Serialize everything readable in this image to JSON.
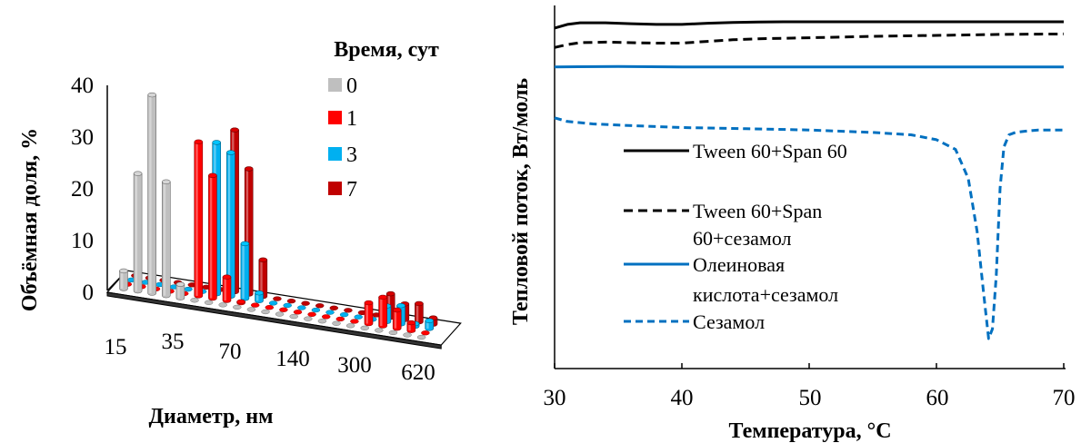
{
  "chart_data": [
    {
      "type": "bar",
      "subtype": "3d-column",
      "xlabel": "Диаметр, нм",
      "ylabel": "Объёмная доля, %",
      "ylim": [
        0,
        40
      ],
      "yticks": [
        "0",
        "10",
        "20",
        "30",
        "40"
      ],
      "xtick_labels": [
        "15",
        "35",
        "70",
        "140",
        "300",
        "620"
      ],
      "legend_title": "Время, сут",
      "legend_position": "top-right",
      "grid": false,
      "series": [
        {
          "name": "0",
          "color": "#bfbfbf",
          "values": [
            3.4,
            22.5,
            38.0,
            21.8,
            2.6,
            0,
            0,
            0,
            0,
            0,
            0,
            0,
            0,
            0,
            0,
            0,
            0,
            0,
            0,
            0,
            0,
            0
          ]
        },
        {
          "name": "1",
          "color": "#ff0000",
          "values": [
            0,
            0,
            0,
            0,
            0,
            29.5,
            23.5,
            4.5,
            0.2,
            0,
            0,
            0,
            0,
            0,
            0,
            0,
            0,
            4.0,
            5.5,
            3.5,
            1.5,
            0
          ]
        },
        {
          "name": "3",
          "color": "#00b0f0",
          "values": [
            0,
            0,
            0,
            0,
            0,
            0,
            29.0,
            27.5,
            10.5,
            1.5,
            0,
            0,
            0,
            0,
            0,
            0,
            0,
            0,
            3.0,
            3.5,
            0.5,
            1.5
          ]
        },
        {
          "name": "7",
          "color": "#c00000",
          "values": [
            0,
            0,
            0,
            0,
            0,
            0,
            0,
            31.0,
            24.0,
            7.0,
            0,
            0,
            0,
            0,
            0,
            0,
            0,
            0,
            4.5,
            3.0,
            3.5,
            1.2
          ]
        }
      ]
    },
    {
      "type": "line",
      "xlabel": "Температура, °C",
      "ylabel": "Тепловой поток, Вт/моль",
      "xlim": [
        30,
        70
      ],
      "xticks": [
        30,
        40,
        50,
        60,
        70
      ],
      "legend_position": "center-left",
      "grid": false,
      "series": [
        {
          "name": "Tween 60+Span 60",
          "color": "#000000",
          "dash": "solid",
          "x": [
            30,
            31,
            32,
            34,
            36,
            38,
            40,
            42,
            44,
            46,
            48,
            50,
            55,
            60,
            65,
            70
          ],
          "y": [
            9.4,
            9.55,
            9.62,
            9.62,
            9.58,
            9.55,
            9.55,
            9.6,
            9.63,
            9.65,
            9.66,
            9.66,
            9.66,
            9.66,
            9.66,
            9.66
          ]
        },
        {
          "name": "Tween 60+Span 60+сезамол",
          "color": "#000000",
          "dash": "dashed",
          "x": [
            30,
            31,
            32,
            34,
            36,
            38,
            40,
            42,
            44,
            46,
            48,
            50,
            55,
            60,
            65,
            70
          ],
          "y": [
            8.6,
            8.72,
            8.8,
            8.82,
            8.8,
            8.78,
            8.78,
            8.85,
            8.92,
            8.96,
            8.98,
            9.0,
            9.06,
            9.1,
            9.14,
            9.16
          ]
        },
        {
          "name": "Олеиновая кислота+сезамол",
          "color": "#0070c0",
          "dash": "solid",
          "x": [
            30,
            35,
            40,
            45,
            50,
            55,
            60,
            65,
            70
          ],
          "y": [
            7.8,
            7.82,
            7.8,
            7.8,
            7.8,
            7.8,
            7.8,
            7.8,
            7.8
          ]
        },
        {
          "name": "Сезамол",
          "color": "#0070c0",
          "dash": "dashed",
          "x": [
            30,
            31,
            33,
            35,
            40,
            45,
            50,
            55,
            58,
            60,
            61.5,
            62.5,
            63.2,
            63.7,
            64.1,
            64.4,
            64.7,
            65.0,
            65.3,
            65.7,
            66.2,
            67,
            68,
            70
          ],
          "y": [
            5.7,
            5.55,
            5.45,
            5.4,
            5.3,
            5.25,
            5.2,
            5.1,
            5.0,
            4.8,
            4.4,
            3.2,
            1.0,
            -1.5,
            -3.4,
            -3.0,
            -0.8,
            2.8,
            4.5,
            5.0,
            5.1,
            5.15,
            5.2,
            5.2
          ]
        }
      ]
    }
  ]
}
